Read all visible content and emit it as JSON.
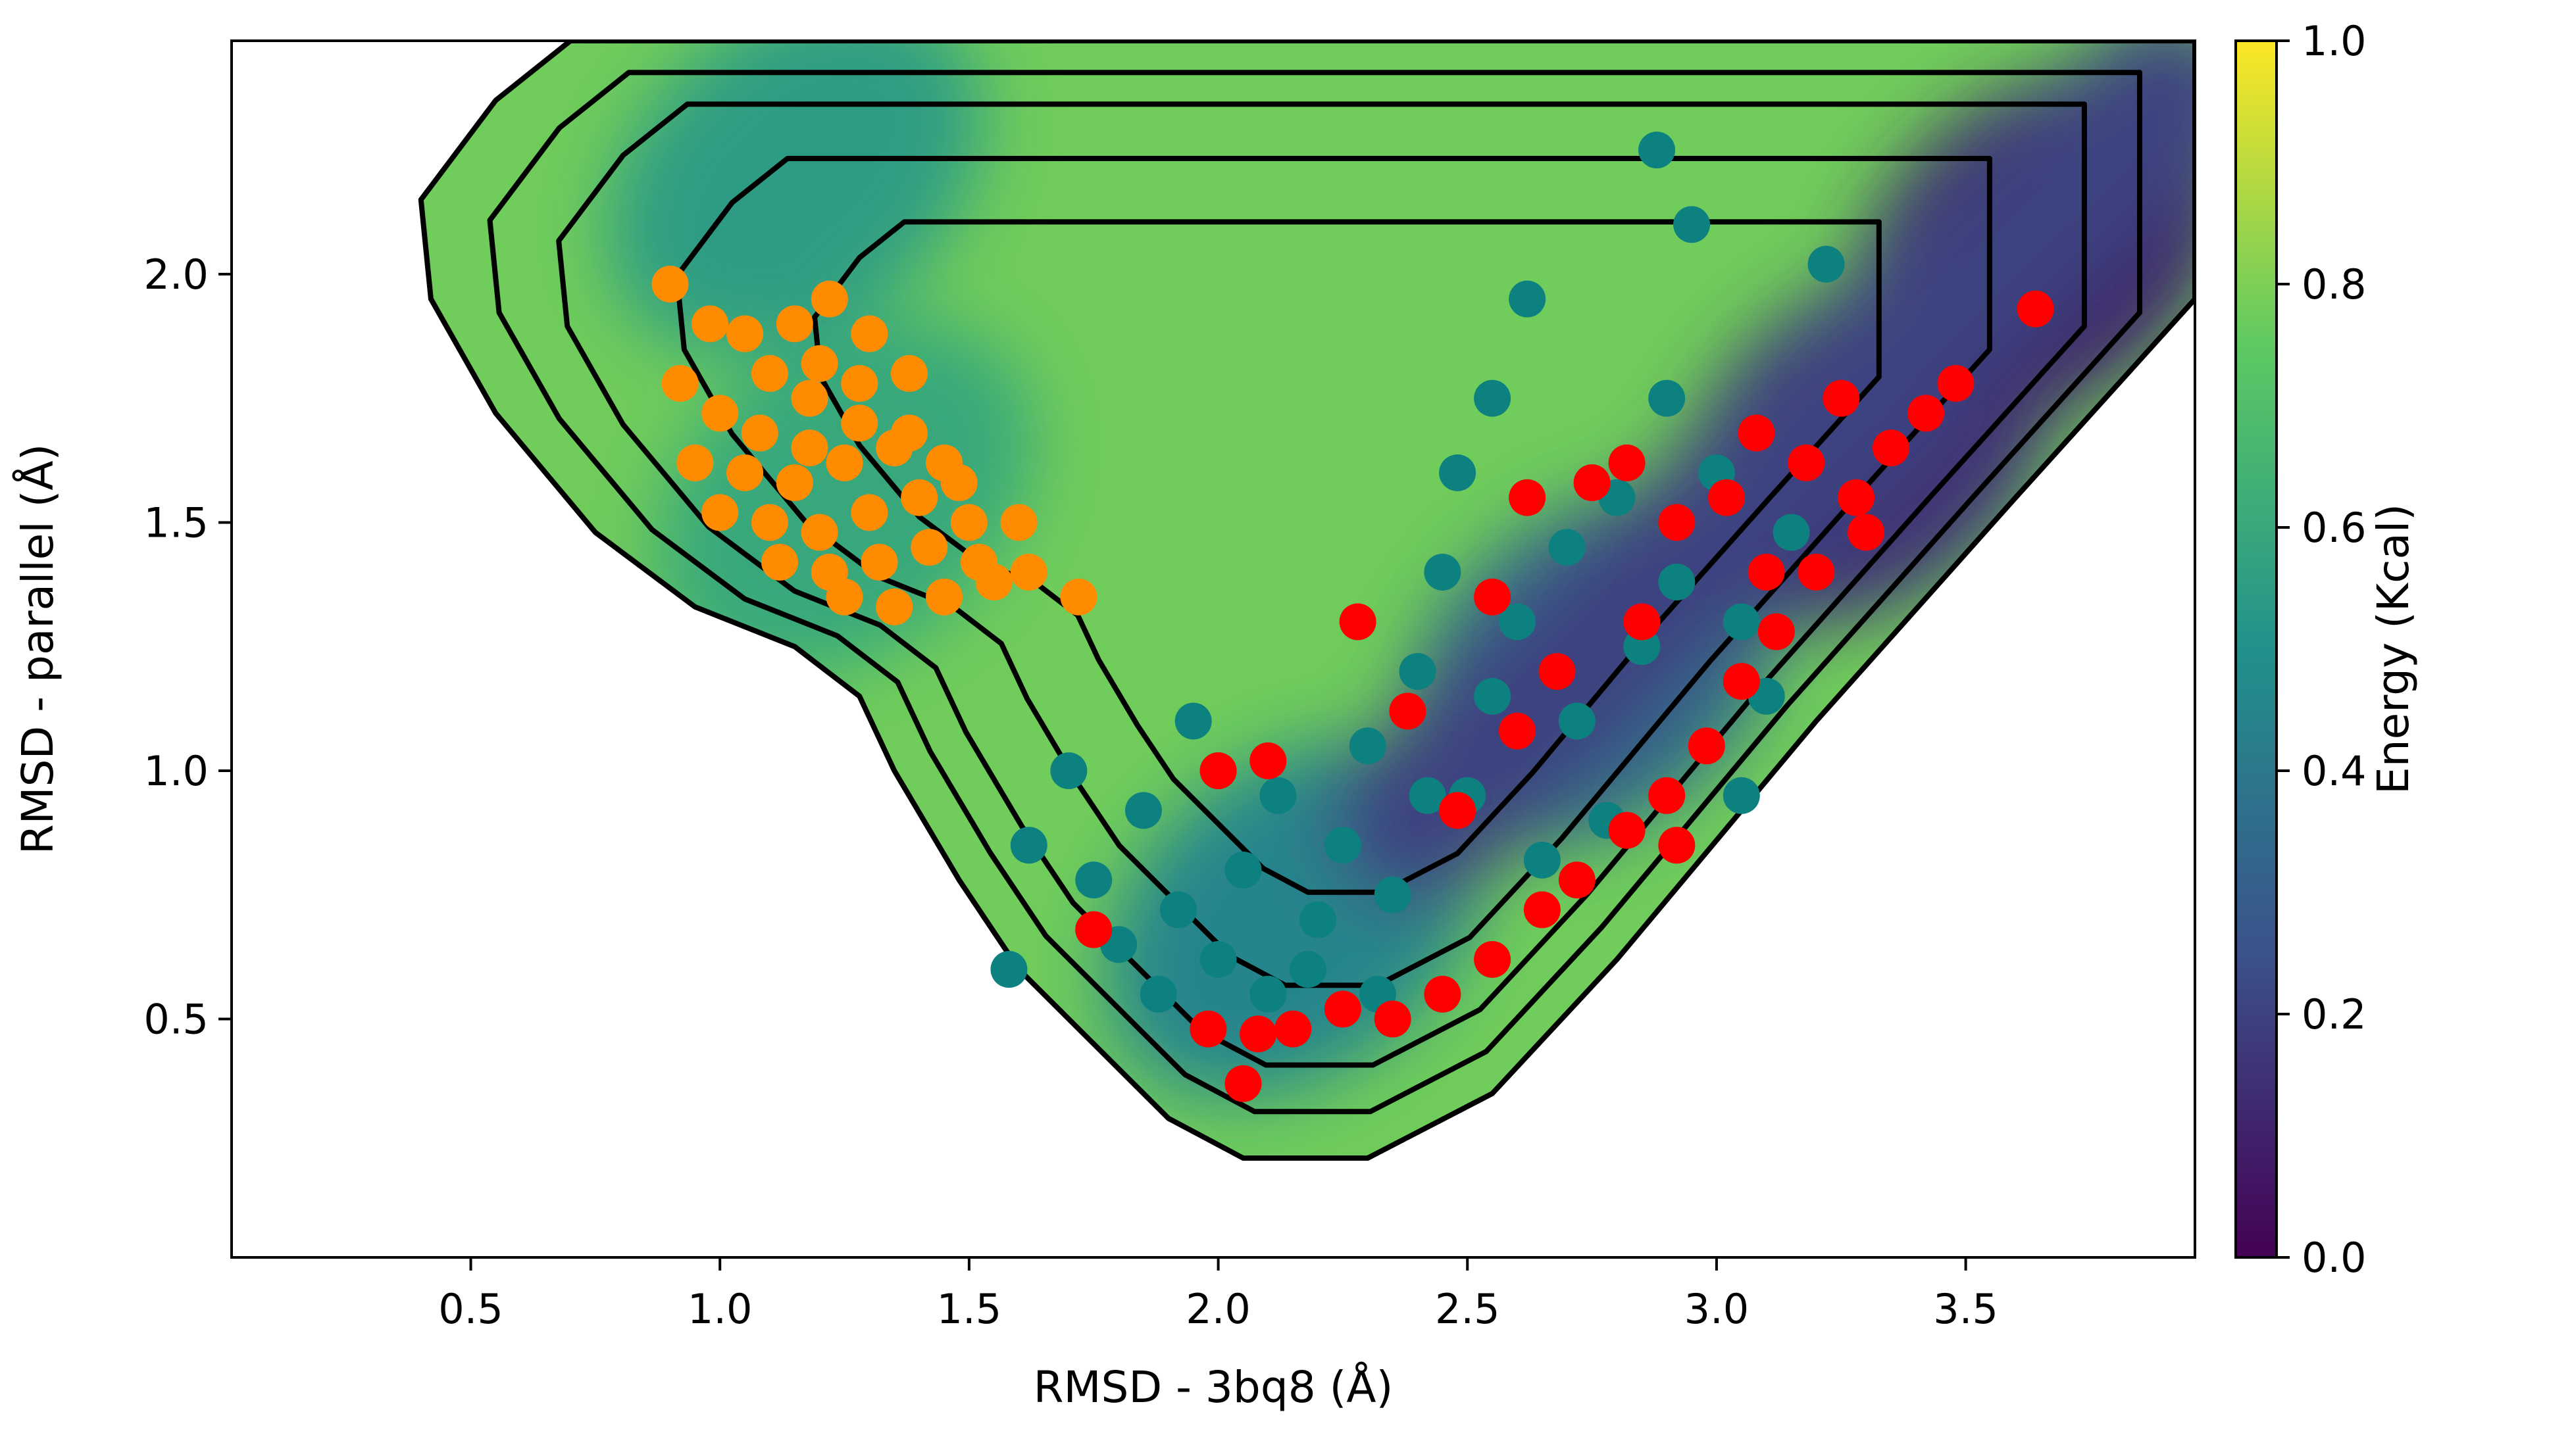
{
  "chart_data": {
    "type": "heatmap",
    "title": "",
    "xlabel": "RMSD - 3bq8 (Å)",
    "ylabel": "RMSD - parallel (Å)",
    "xlim": [
      0.02,
      3.96
    ],
    "ylim": [
      0.02,
      2.47
    ],
    "x_ticks": [
      "0.5",
      "1.0",
      "1.5",
      "2.0",
      "2.5",
      "3.0",
      "3.5"
    ],
    "x_tick_values": [
      0.5,
      1.0,
      1.5,
      2.0,
      2.5,
      3.0,
      3.5
    ],
    "y_ticks": [
      "0.5",
      "1.0",
      "1.5",
      "2.0"
    ],
    "y_tick_values": [
      0.5,
      1.0,
      1.5,
      2.0
    ],
    "grid": false,
    "colormap": "viridis",
    "colorbar": {
      "label": "Energy (Kcal)",
      "range": [
        0.0,
        1.0
      ],
      "ticks": [
        "0.0",
        "0.2",
        "0.4",
        "0.6",
        "0.8",
        "1.0"
      ],
      "tick_values": [
        0.0,
        0.2,
        0.4,
        0.6,
        0.8,
        1.0
      ],
      "colors": [
        "#440154",
        "#3b528b",
        "#21918c",
        "#5ec962",
        "#fde725"
      ]
    },
    "contour_color": "#000000",
    "energy_surface_boundary": [
      [
        0.4,
        2.15
      ],
      [
        0.55,
        2.35
      ],
      [
        0.7,
        2.47
      ],
      [
        3.96,
        2.47
      ],
      [
        3.96,
        1.95
      ],
      [
        3.6,
        1.55
      ],
      [
        3.2,
        1.1
      ],
      [
        2.8,
        0.62
      ],
      [
        2.55,
        0.35
      ],
      [
        2.3,
        0.22
      ],
      [
        2.05,
        0.22
      ],
      [
        1.9,
        0.3
      ],
      [
        1.75,
        0.45
      ],
      [
        1.6,
        0.6
      ],
      [
        1.48,
        0.78
      ],
      [
        1.35,
        1.0
      ],
      [
        1.28,
        1.15
      ],
      [
        1.15,
        1.25
      ],
      [
        0.95,
        1.33
      ],
      [
        0.75,
        1.48
      ],
      [
        0.55,
        1.72
      ],
      [
        0.42,
        1.95
      ]
    ],
    "energy_minima": [
      {
        "x": 1.15,
        "y": 2.2,
        "value": 0.55
      },
      {
        "x": 1.25,
        "y": 1.55,
        "value": 0.6
      },
      {
        "x": 2.15,
        "y": 0.7,
        "value": 0.45
      },
      {
        "x": 2.75,
        "y": 1.2,
        "value": 0.35
      },
      {
        "x": 3.3,
        "y": 1.65,
        "value": 0.15
      },
      {
        "x": 3.65,
        "y": 2.05,
        "value": 0.1
      }
    ],
    "series": [
      {
        "color": "#ff8c00",
        "points": [
          [
            0.9,
            1.98
          ],
          [
            0.98,
            1.9
          ],
          [
            1.05,
            1.88
          ],
          [
            1.15,
            1.9
          ],
          [
            1.22,
            1.95
          ],
          [
            1.3,
            1.88
          ],
          [
            0.92,
            1.78
          ],
          [
            1.0,
            1.72
          ],
          [
            1.08,
            1.68
          ],
          [
            1.18,
            1.75
          ],
          [
            1.28,
            1.78
          ],
          [
            1.38,
            1.8
          ],
          [
            0.95,
            1.62
          ],
          [
            1.05,
            1.6
          ],
          [
            1.15,
            1.58
          ],
          [
            1.25,
            1.62
          ],
          [
            1.35,
            1.65
          ],
          [
            1.45,
            1.62
          ],
          [
            1.0,
            1.52
          ],
          [
            1.1,
            1.5
          ],
          [
            1.2,
            1.48
          ],
          [
            1.3,
            1.52
          ],
          [
            1.4,
            1.55
          ],
          [
            1.5,
            1.5
          ],
          [
            1.12,
            1.42
          ],
          [
            1.22,
            1.4
          ],
          [
            1.32,
            1.42
          ],
          [
            1.42,
            1.45
          ],
          [
            1.52,
            1.42
          ],
          [
            1.62,
            1.4
          ],
          [
            1.25,
            1.35
          ],
          [
            1.35,
            1.33
          ],
          [
            1.45,
            1.35
          ],
          [
            1.55,
            1.38
          ],
          [
            1.72,
            1.35
          ],
          [
            1.6,
            1.5
          ],
          [
            1.18,
            1.65
          ],
          [
            1.28,
            1.7
          ],
          [
            1.38,
            1.68
          ],
          [
            1.48,
            1.58
          ],
          [
            1.2,
            1.82
          ],
          [
            1.1,
            1.8
          ]
        ]
      },
      {
        "color": "#0d8080",
        "points": [
          [
            1.62,
            0.85
          ],
          [
            1.7,
            1.0
          ],
          [
            1.75,
            0.78
          ],
          [
            1.85,
            0.92
          ],
          [
            1.92,
            0.72
          ],
          [
            1.95,
            1.1
          ],
          [
            1.8,
            0.65
          ],
          [
            1.88,
            0.55
          ],
          [
            2.0,
            0.62
          ],
          [
            2.05,
            0.8
          ],
          [
            2.12,
            0.95
          ],
          [
            2.2,
            0.7
          ],
          [
            2.25,
            0.85
          ],
          [
            2.3,
            1.05
          ],
          [
            2.35,
            0.75
          ],
          [
            2.4,
            1.2
          ],
          [
            2.45,
            1.4
          ],
          [
            2.48,
            1.6
          ],
          [
            2.5,
            0.95
          ],
          [
            2.55,
            1.15
          ],
          [
            2.6,
            1.3
          ],
          [
            2.55,
            1.75
          ],
          [
            2.62,
            1.95
          ],
          [
            2.7,
            1.45
          ],
          [
            2.72,
            1.1
          ],
          [
            2.8,
            1.55
          ],
          [
            2.85,
            1.25
          ],
          [
            2.9,
            1.75
          ],
          [
            2.92,
            1.38
          ],
          [
            2.95,
            2.1
          ],
          [
            2.88,
            2.25
          ],
          [
            3.0,
            1.6
          ],
          [
            3.05,
            1.3
          ],
          [
            3.15,
            1.48
          ],
          [
            3.22,
            2.02
          ],
          [
            3.05,
            0.95
          ],
          [
            2.1,
            0.55
          ],
          [
            2.18,
            0.6
          ],
          [
            2.32,
            0.55
          ],
          [
            1.58,
            0.6
          ],
          [
            2.0,
            1.0
          ],
          [
            2.65,
            0.82
          ],
          [
            3.1,
            1.15
          ],
          [
            2.42,
            0.95
          ],
          [
            2.78,
            0.9
          ]
        ]
      },
      {
        "color": "#ff0000",
        "points": [
          [
            1.75,
            0.68
          ],
          [
            1.98,
            0.48
          ],
          [
            2.08,
            0.47
          ],
          [
            2.15,
            0.48
          ],
          [
            2.25,
            0.52
          ],
          [
            2.35,
            0.5
          ],
          [
            2.45,
            0.55
          ],
          [
            2.55,
            0.62
          ],
          [
            2.65,
            0.72
          ],
          [
            2.72,
            0.78
          ],
          [
            2.82,
            0.88
          ],
          [
            2.9,
            0.95
          ],
          [
            2.98,
            1.05
          ],
          [
            3.05,
            1.18
          ],
          [
            3.12,
            1.28
          ],
          [
            3.2,
            1.4
          ],
          [
            3.28,
            1.55
          ],
          [
            3.35,
            1.65
          ],
          [
            3.42,
            1.72
          ],
          [
            3.48,
            1.78
          ],
          [
            3.64,
            1.93
          ],
          [
            2.0,
            1.0
          ],
          [
            2.1,
            1.02
          ],
          [
            2.28,
            1.3
          ],
          [
            2.38,
            1.12
          ],
          [
            2.48,
            0.92
          ],
          [
            2.6,
            1.08
          ],
          [
            2.68,
            1.2
          ],
          [
            2.75,
            1.58
          ],
          [
            2.82,
            1.62
          ],
          [
            2.92,
            1.5
          ],
          [
            3.02,
            1.55
          ],
          [
            3.08,
            1.68
          ],
          [
            3.18,
            1.62
          ],
          [
            3.25,
            1.75
          ],
          [
            2.55,
            1.35
          ],
          [
            2.92,
            0.85
          ],
          [
            3.1,
            1.4
          ],
          [
            3.3,
            1.48
          ],
          [
            2.05,
            0.37
          ],
          [
            2.62,
            1.55
          ],
          [
            2.85,
            1.3
          ]
        ]
      }
    ]
  }
}
